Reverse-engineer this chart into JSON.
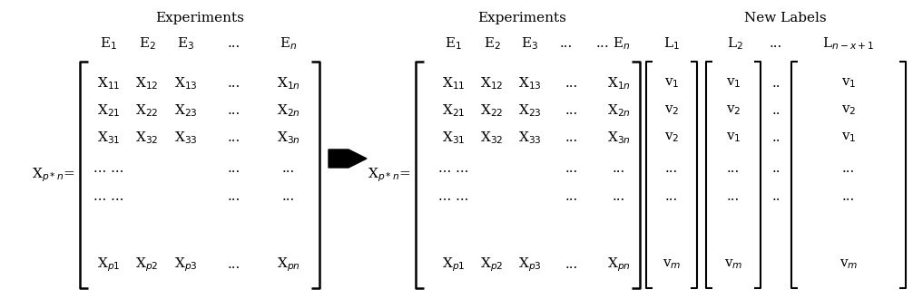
{
  "bg_color": "#ffffff",
  "left_header": "Experiments",
  "right_header_exp": "Experiments",
  "right_header_lbl": "New Labels",
  "col_headers_left": [
    "E$_1$",
    "E$_2$",
    "E$_3$",
    "...",
    "E$_n$"
  ],
  "col_headers_right_exp": [
    "E$_1$",
    "E$_2$",
    "E$_3$",
    "...",
    "... E$_n$"
  ],
  "col_headers_right_lbl": [
    "L$_1$",
    "L$_2$",
    "...",
    "L$_{n-x+1}$"
  ],
  "matrix_label_left": "X$_{p*n}$=",
  "matrix_label_right": "X$_{p*n}$=",
  "left_matrix_rows": [
    [
      "X$_{11}$",
      "X$_{12}$",
      "X$_{13}$",
      "...",
      "X$_{1n}$"
    ],
    [
      "X$_{21}$",
      "X$_{22}$",
      "X$_{23}$",
      "...",
      "X$_{2n}$"
    ],
    [
      "X$_{31}$",
      "X$_{32}$",
      "X$_{33}$",
      "...",
      "X$_{3n}$"
    ],
    [
      "... ...",
      "",
      "...",
      "..."
    ],
    [
      "... ...",
      "",
      "...",
      "..."
    ],
    [
      "X$_{p1}$",
      "X$_{p2}$",
      "X$_{p3}$",
      "...",
      "X$_{pn}$"
    ]
  ],
  "right_matrix_rows": [
    [
      "X$_{11}$",
      "X$_{12}$",
      "X$_{13}$",
      "...",
      "X$_{1n}$"
    ],
    [
      "X$_{21}$",
      "X$_{22}$",
      "X$_{23}$",
      "...",
      "X$_{2n}$"
    ],
    [
      "X$_{31}$",
      "X$_{32}$",
      "X$_{33}$",
      "...",
      "X$_{3n}$"
    ],
    [
      "... ...",
      "",
      "...",
      "..."
    ],
    [
      "... ...",
      "",
      "...",
      "..."
    ],
    [
      "X$_{p1}$",
      "X$_{p2}$",
      "X$_{p3}$",
      "...",
      "X$_{pn}$"
    ]
  ],
  "l1_data": [
    "v$_1$",
    "v$_2$",
    "v$_2$",
    "...",
    "...",
    "v$_m$"
  ],
  "l2_data": [
    "v$_1$",
    "v$_2$",
    "v$_1$",
    "...",
    "...",
    "v$_m$"
  ],
  "dots_data": [
    "..",
    "..",
    "..",
    "..",
    "..",
    ""
  ],
  "ln_data": [
    "v$_1$",
    "v$_2$",
    "v$_1$",
    "...",
    "...",
    "v$_m$"
  ]
}
